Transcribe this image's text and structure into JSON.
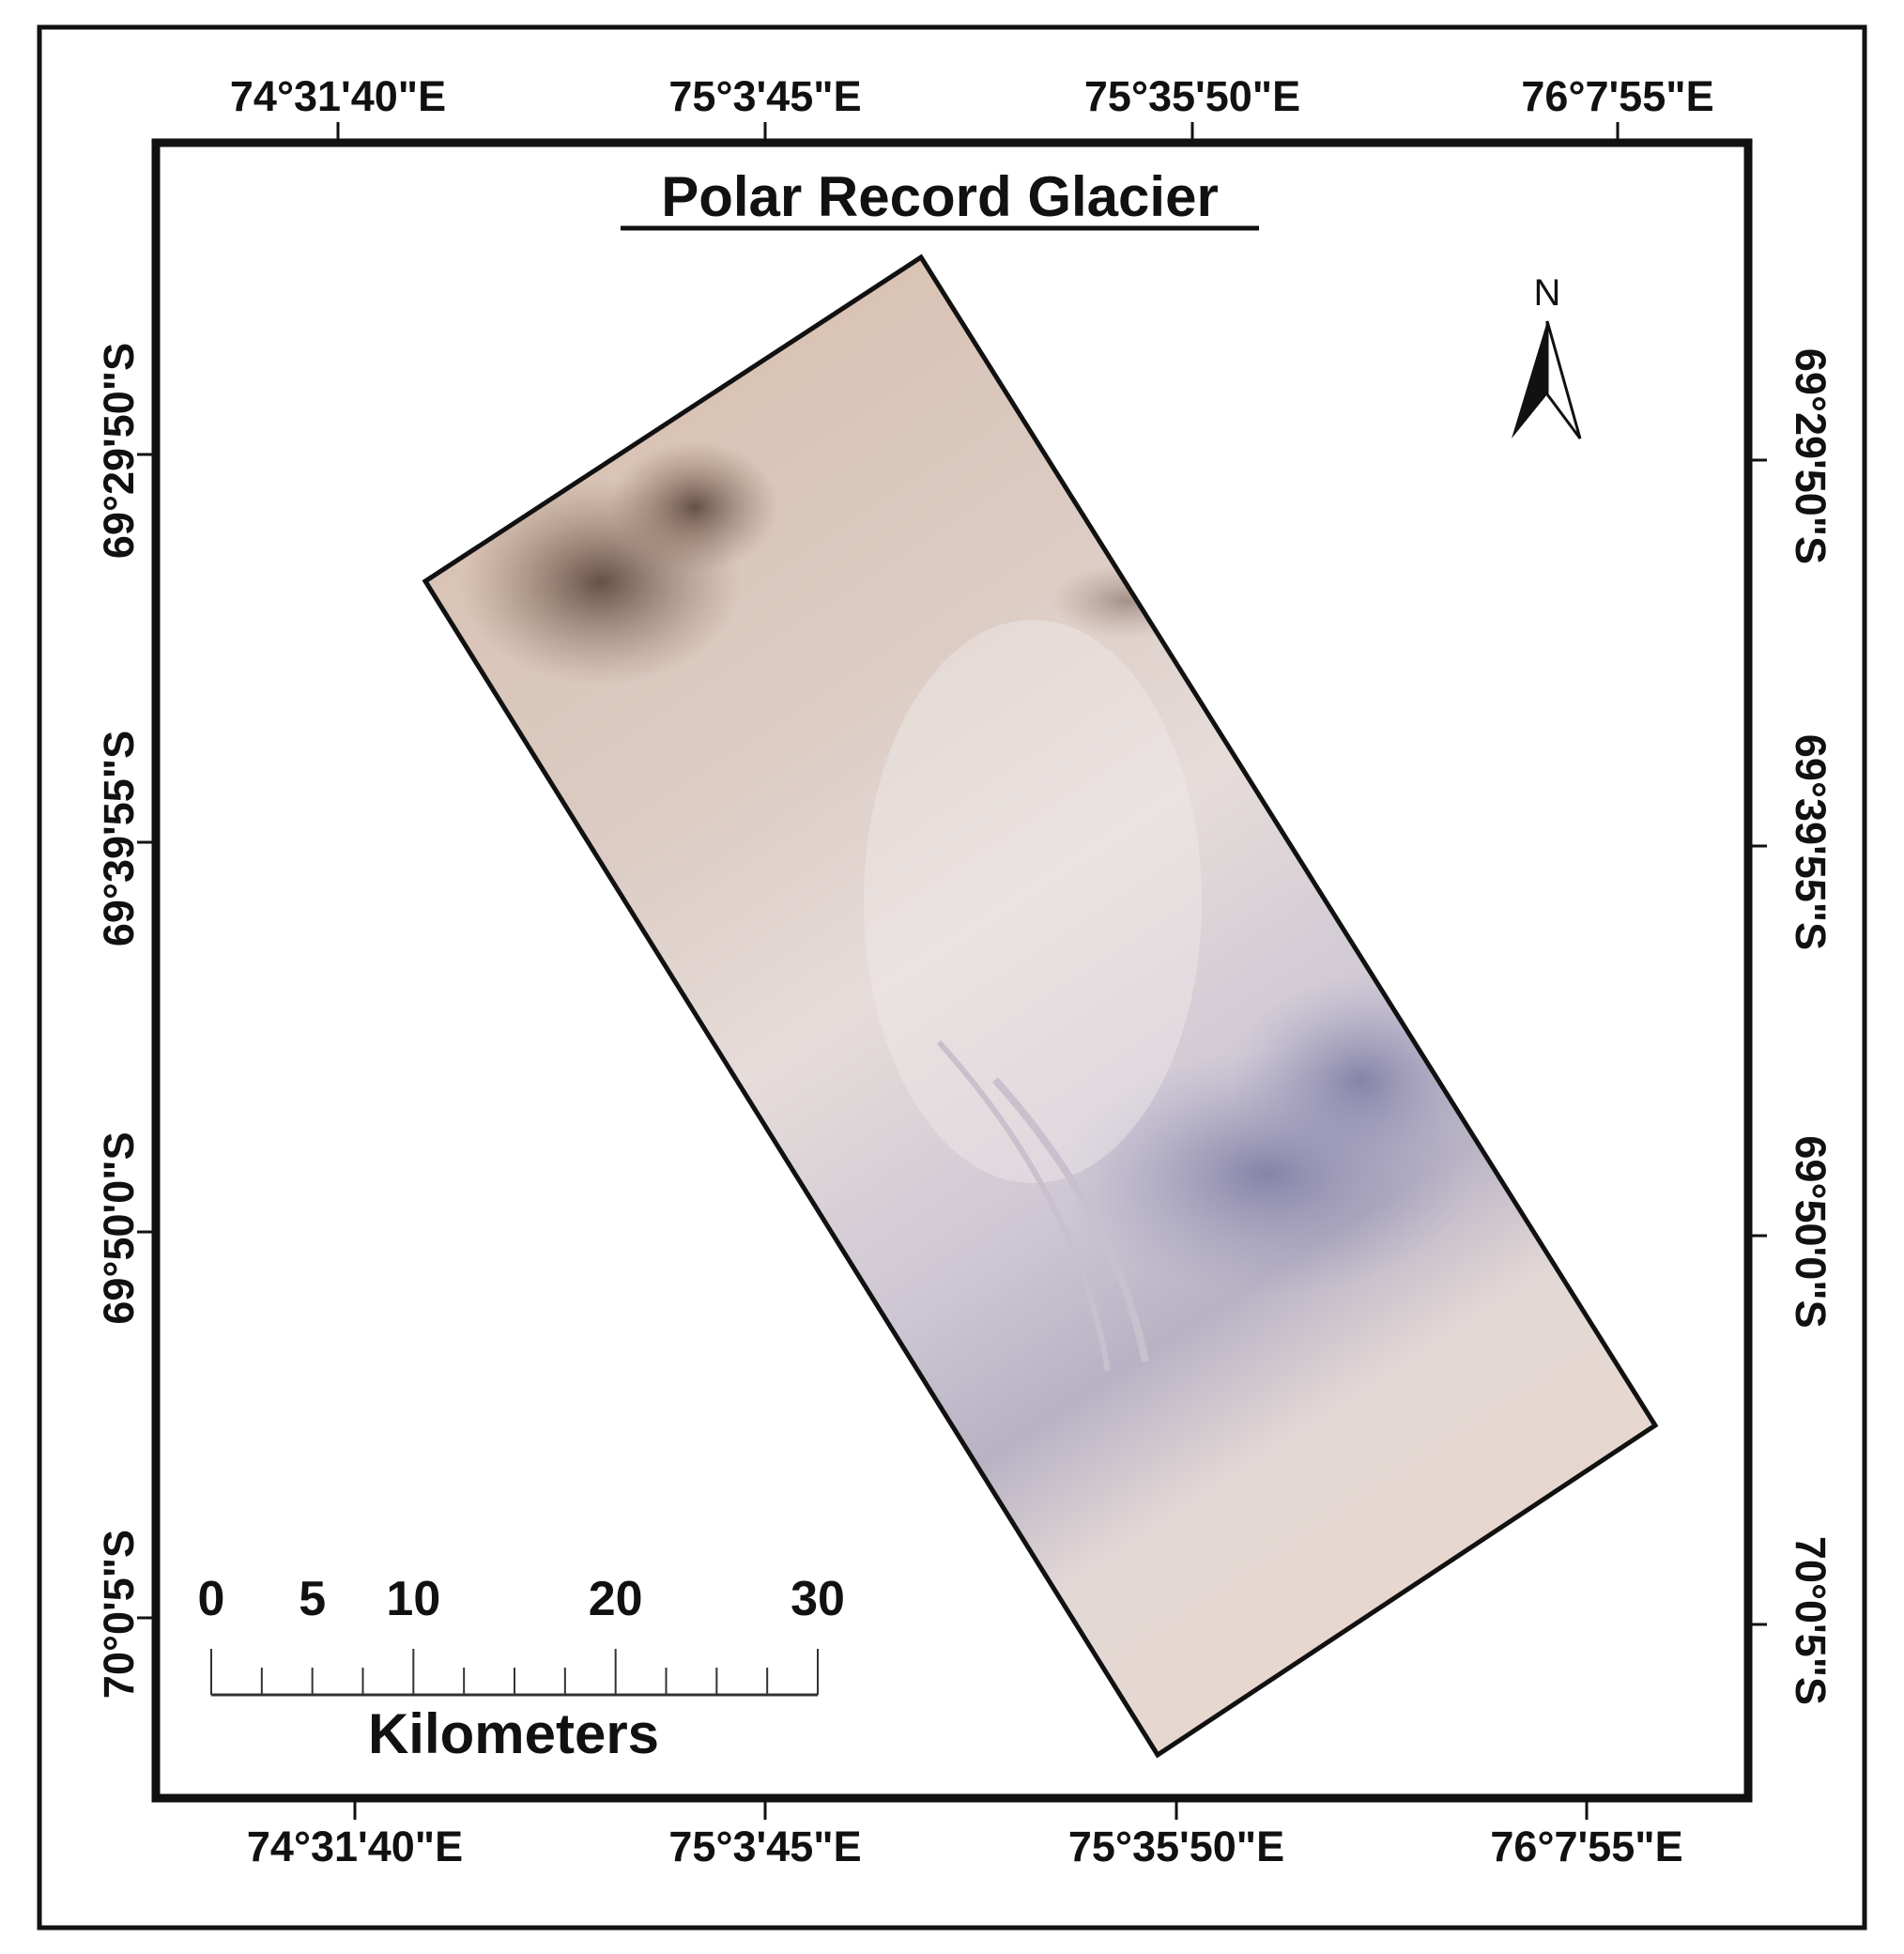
{
  "title": "Polar Record Glacier",
  "graticule": {
    "top": [
      "74°31'40\"E",
      "75°3'45\"E",
      "75°35'50\"E",
      "76°7'55\"E"
    ],
    "bottom": [
      "74°31'40\"E",
      "75°3'45\"E",
      "75°35'50\"E",
      "76°7'55\"E"
    ],
    "left": [
      "69°29'50\"S",
      "69°39'55\"S",
      "69°50'0\"S",
      "70°0'5\"S"
    ],
    "right": [
      "69°29'50\"S",
      "69°39'55\"S",
      "69°50'0\"S",
      "70°0'5\"S"
    ]
  },
  "north_arrow": {
    "label": "N"
  },
  "scale_bar": {
    "labels": [
      0,
      5,
      10,
      20,
      30
    ],
    "unit": "Kilometers"
  }
}
